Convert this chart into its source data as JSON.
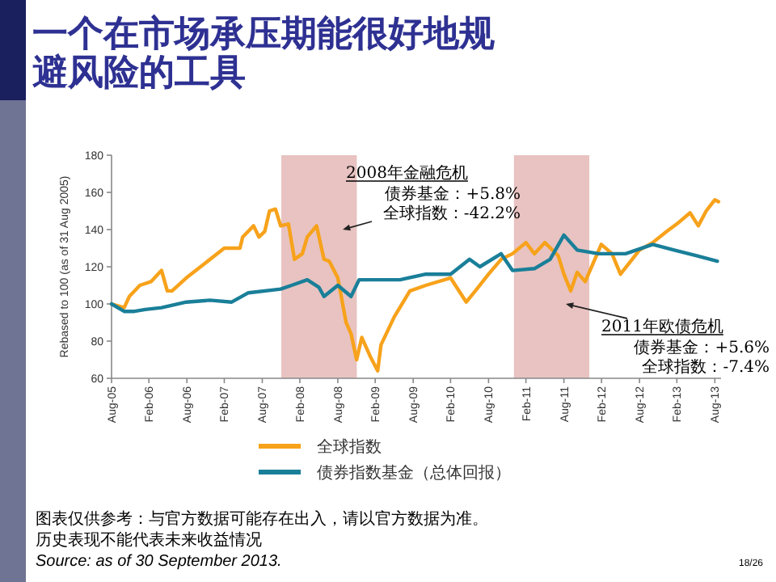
{
  "chart_data": {
    "type": "line",
    "title": "一个在市场承压期能很好地规避风险的工具",
    "ylabel": "Rebased to 100 (as of 31 Aug 2005)",
    "xlim": [
      "2005-08-31",
      "2013-09-30"
    ],
    "xticks": [
      {
        "value": "2005-08-31",
        "label": "Aug-05"
      },
      {
        "value": "2006-02-28",
        "label": "Feb-06"
      },
      {
        "value": "2006-08-31",
        "label": "Aug-06"
      },
      {
        "value": "2007-02-28",
        "label": "Feb-07"
      },
      {
        "value": "2007-08-31",
        "label": "Aug-07"
      },
      {
        "value": "2008-02-29",
        "label": "Feb-08"
      },
      {
        "value": "2008-08-31",
        "label": "Aug-08"
      },
      {
        "value": "2009-02-28",
        "label": "Feb-09"
      },
      {
        "value": "2009-08-31",
        "label": "Aug-09"
      },
      {
        "value": "2010-02-28",
        "label": "Feb-10"
      },
      {
        "value": "2010-08-31",
        "label": "Aug-10"
      },
      {
        "value": "2011-02-28",
        "label": "Feb-11"
      },
      {
        "value": "2011-08-31",
        "label": "Aug-11"
      },
      {
        "value": "2012-02-29",
        "label": "Feb-12"
      },
      {
        "value": "2012-08-31",
        "label": "Aug-12"
      },
      {
        "value": "2013-02-28",
        "label": "Feb-13"
      },
      {
        "value": "2013-08-31",
        "label": "Aug-13"
      }
    ],
    "ylim": [
      60,
      180
    ],
    "yticks": [
      60,
      80,
      100,
      120,
      140,
      160,
      180
    ],
    "legend": "bottom",
    "bands": [
      {
        "axis": "x",
        "from": "2007-12",
        "to": "2008-12",
        "color": "#e8c3c1"
      },
      {
        "axis": "x",
        "from": "2011-01",
        "to": "2012-01",
        "color": "#e8c3c1"
      }
    ],
    "series": [
      {
        "name": "全球指数",
        "color": "#f7a21b",
        "x": [
          "2005-08-31",
          "2005-10-31",
          "2005-11-25",
          "2006-01-15",
          "2006-03-10",
          "2006-04-30",
          "2006-05-28",
          "2006-06-20",
          "2006-08-28",
          "2006-11-28",
          "2007-02-28",
          "2007-05-15",
          "2007-05-28",
          "2007-07-20",
          "2007-08-15",
          "2007-09-12",
          "2007-10-05",
          "2007-11-03",
          "2007-11-28",
          "2008-01-05",
          "2008-02-03",
          "2008-03-12",
          "2008-04-05",
          "2008-05-20",
          "2008-06-25",
          "2008-07-20",
          "2008-08-31",
          "2008-10-10",
          "2008-11-03",
          "2008-11-30",
          "2008-12-25",
          "2009-02-03",
          "2009-03-12",
          "2009-03-28",
          "2009-05-31",
          "2009-08-15",
          "2009-10-31",
          "2010-02-28",
          "2010-05-15",
          "2010-06-28",
          "2010-08-31",
          "2010-10-31",
          "2010-12-25",
          "2011-02-28",
          "2011-04-10",
          "2011-05-31",
          "2011-08-03",
          "2011-08-31",
          "2011-10-03",
          "2011-11-03",
          "2011-12-12",
          "2012-02-28",
          "2012-04-20",
          "2012-05-31",
          "2012-08-31",
          "2012-11-03",
          "2013-01-10",
          "2013-02-28",
          "2013-05-03",
          "2013-06-12",
          "2013-07-20",
          "2013-08-31",
          "2013-09-18"
        ],
        "values": [
          100,
          98,
          104,
          110,
          112,
          118,
          107,
          107,
          114,
          122,
          130,
          130,
          136,
          142,
          136,
          139,
          150,
          151,
          142,
          143,
          124,
          127,
          136,
          142,
          124,
          123,
          114,
          90,
          84,
          70,
          82,
          72,
          64,
          78,
          93,
          107,
          110,
          114,
          101,
          107,
          116,
          124,
          127,
          133,
          127,
          133,
          126,
          116,
          107,
          117,
          112,
          132,
          127,
          116,
          129,
          133,
          139,
          143,
          149,
          142,
          150,
          156,
          155
        ]
      },
      {
        "name": "债券指数基金（总体回报）",
        "color": "#1a7f99",
        "x": [
          "2005-08-31",
          "2005-10-31",
          "2005-12-20",
          "2006-02-10",
          "2006-04-30",
          "2006-08-28",
          "2006-12-20",
          "2007-04-05",
          "2007-06-25",
          "2007-11-28",
          "2008-01-20",
          "2008-04-05",
          "2008-05-31",
          "2008-06-25",
          "2008-08-31",
          "2008-11-03",
          "2008-12-12",
          "2009-03-12",
          "2009-06-28",
          "2009-10-31",
          "2010-02-28",
          "2010-05-31",
          "2010-07-20",
          "2010-10-31",
          "2010-12-25",
          "2011-04-10",
          "2011-06-25",
          "2011-08-31",
          "2011-11-03",
          "2012-02-15",
          "2012-06-25",
          "2012-11-03",
          "2013-02-15",
          "2013-05-31",
          "2013-09-12"
        ],
        "values": [
          100,
          96,
          96,
          97,
          98,
          101,
          102,
          101,
          106,
          108,
          110,
          113,
          109,
          104,
          110,
          104,
          113,
          113,
          113,
          116,
          116,
          124,
          120,
          127,
          118,
          119,
          124,
          137,
          129,
          127,
          127,
          132,
          129,
          126,
          123
        ]
      }
    ],
    "annotations": [
      "2008年金融危机",
      "债券基金：+5.8%",
      "全球指数：-42.2%",
      "2011年欧债危机",
      "债券基金：+5.6%",
      "全球指数：-7.4%",
      "图表仅供参考：与官方数据可能存在出入，请以官方数据为准。",
      "历史表现不能代表未来收益情况",
      "*Source: as of 30 September 2013.*",
      "18/26"
    ]
  }
}
